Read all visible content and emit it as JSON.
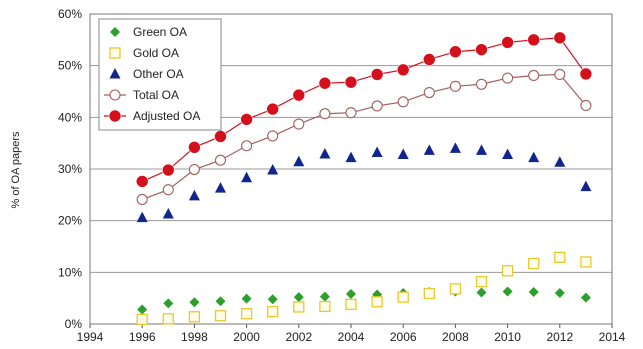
{
  "chart_data": {
    "type": "line",
    "ylabel": "% of OA papers",
    "xlim": [
      1994,
      2014
    ],
    "ylim": [
      0,
      60
    ],
    "x_ticks": [
      "1994",
      "1996",
      "1998",
      "2000",
      "2002",
      "2004",
      "2006",
      "2008",
      "2010",
      "2012",
      "2014"
    ],
    "y_ticks": [
      "0%",
      "10%",
      "20%",
      "30%",
      "40%",
      "50%",
      "60%"
    ],
    "grid": "horizontal",
    "legend_position": "top-left",
    "x": [
      1996,
      1997,
      1998,
      1999,
      2000,
      2001,
      2002,
      2003,
      2004,
      2005,
      2006,
      2007,
      2008,
      2009,
      2010,
      2011,
      2012,
      2013
    ],
    "series": [
      {
        "name": "Green OA",
        "marker": "diamond",
        "color": "#2ca02c",
        "line": false,
        "values": [
          2.8,
          4.0,
          4.2,
          4.4,
          4.9,
          4.8,
          5.2,
          5.3,
          5.8,
          5.7,
          6.0,
          6.2,
          6.3,
          6.1,
          6.3,
          6.2,
          6.0,
          5.1
        ]
      },
      {
        "name": "Gold OA",
        "marker": "square",
        "color": "#e8c830",
        "line": false,
        "values": [
          0.9,
          1.0,
          1.4,
          1.6,
          2.0,
          2.4,
          3.3,
          3.4,
          3.8,
          4.3,
          5.2,
          5.9,
          6.8,
          8.2,
          10.3,
          11.7,
          12.9,
          12.0
        ]
      },
      {
        "name": "Other OA",
        "marker": "triangle",
        "color": "#10258f",
        "line": false,
        "values": [
          20.6,
          21.3,
          24.8,
          26.3,
          28.3,
          29.8,
          31.4,
          32.9,
          32.2,
          33.2,
          32.8,
          33.6,
          34.0,
          33.6,
          32.8,
          32.2,
          31.3,
          26.6
        ]
      },
      {
        "name": "Total OA",
        "marker": "circle-open",
        "color": "#a06060",
        "line": true,
        "values": [
          24.1,
          26.0,
          29.9,
          31.7,
          34.5,
          36.4,
          38.7,
          40.7,
          40.9,
          42.2,
          43.0,
          44.8,
          46.0,
          46.4,
          47.6,
          48.1,
          48.3,
          42.3
        ]
      },
      {
        "name": "Adjusted OA",
        "marker": "circle-filled",
        "color": "#d4101c",
        "line": true,
        "values": [
          27.6,
          29.8,
          34.2,
          36.3,
          39.6,
          41.6,
          44.3,
          46.6,
          46.8,
          48.3,
          49.2,
          51.2,
          52.7,
          53.1,
          54.5,
          55.0,
          55.4,
          48.4
        ]
      }
    ]
  }
}
